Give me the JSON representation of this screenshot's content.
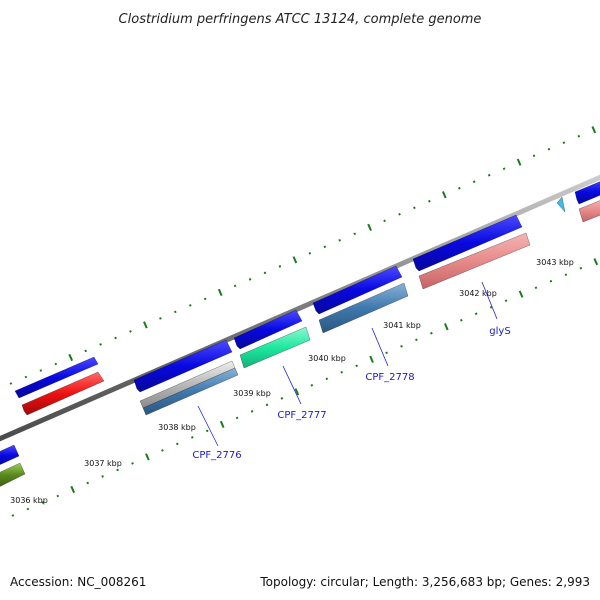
{
  "title": "Clostridium perfringens ATCC 13124, complete genome",
  "footer": {
    "accession": "Accession: NC_008261",
    "summary": "Topology: circular; Length: 3,256,683 bp; Genes: 2,993"
  },
  "colors": {
    "backbone": "#8a8a8a",
    "tick": "#1a7a1a",
    "label_line": "#2222cc",
    "gene_label": "#1a1ac8",
    "cds_strand": "#0a0ad8",
    "red_gene": "#ee1111",
    "salmon_gene": "#e88a8a",
    "steel_gene": "#3f79ae",
    "cyan_gene": "#1ee8a0",
    "gray_gene": "#b8b8b8",
    "olive_gene": "#5a8a1e",
    "sky_gene": "#40b8e8"
  },
  "ruler": {
    "labels": [
      "3036 kbp",
      "3037 kbp",
      "3038 kbp",
      "3039 kbp",
      "3040 kbp",
      "3041 kbp",
      "3042 kbp",
      "3043 kbp"
    ]
  },
  "gene_labels": [
    "CPF_2776",
    "CPF_2777",
    "CPF_2778",
    "glyS"
  ]
}
